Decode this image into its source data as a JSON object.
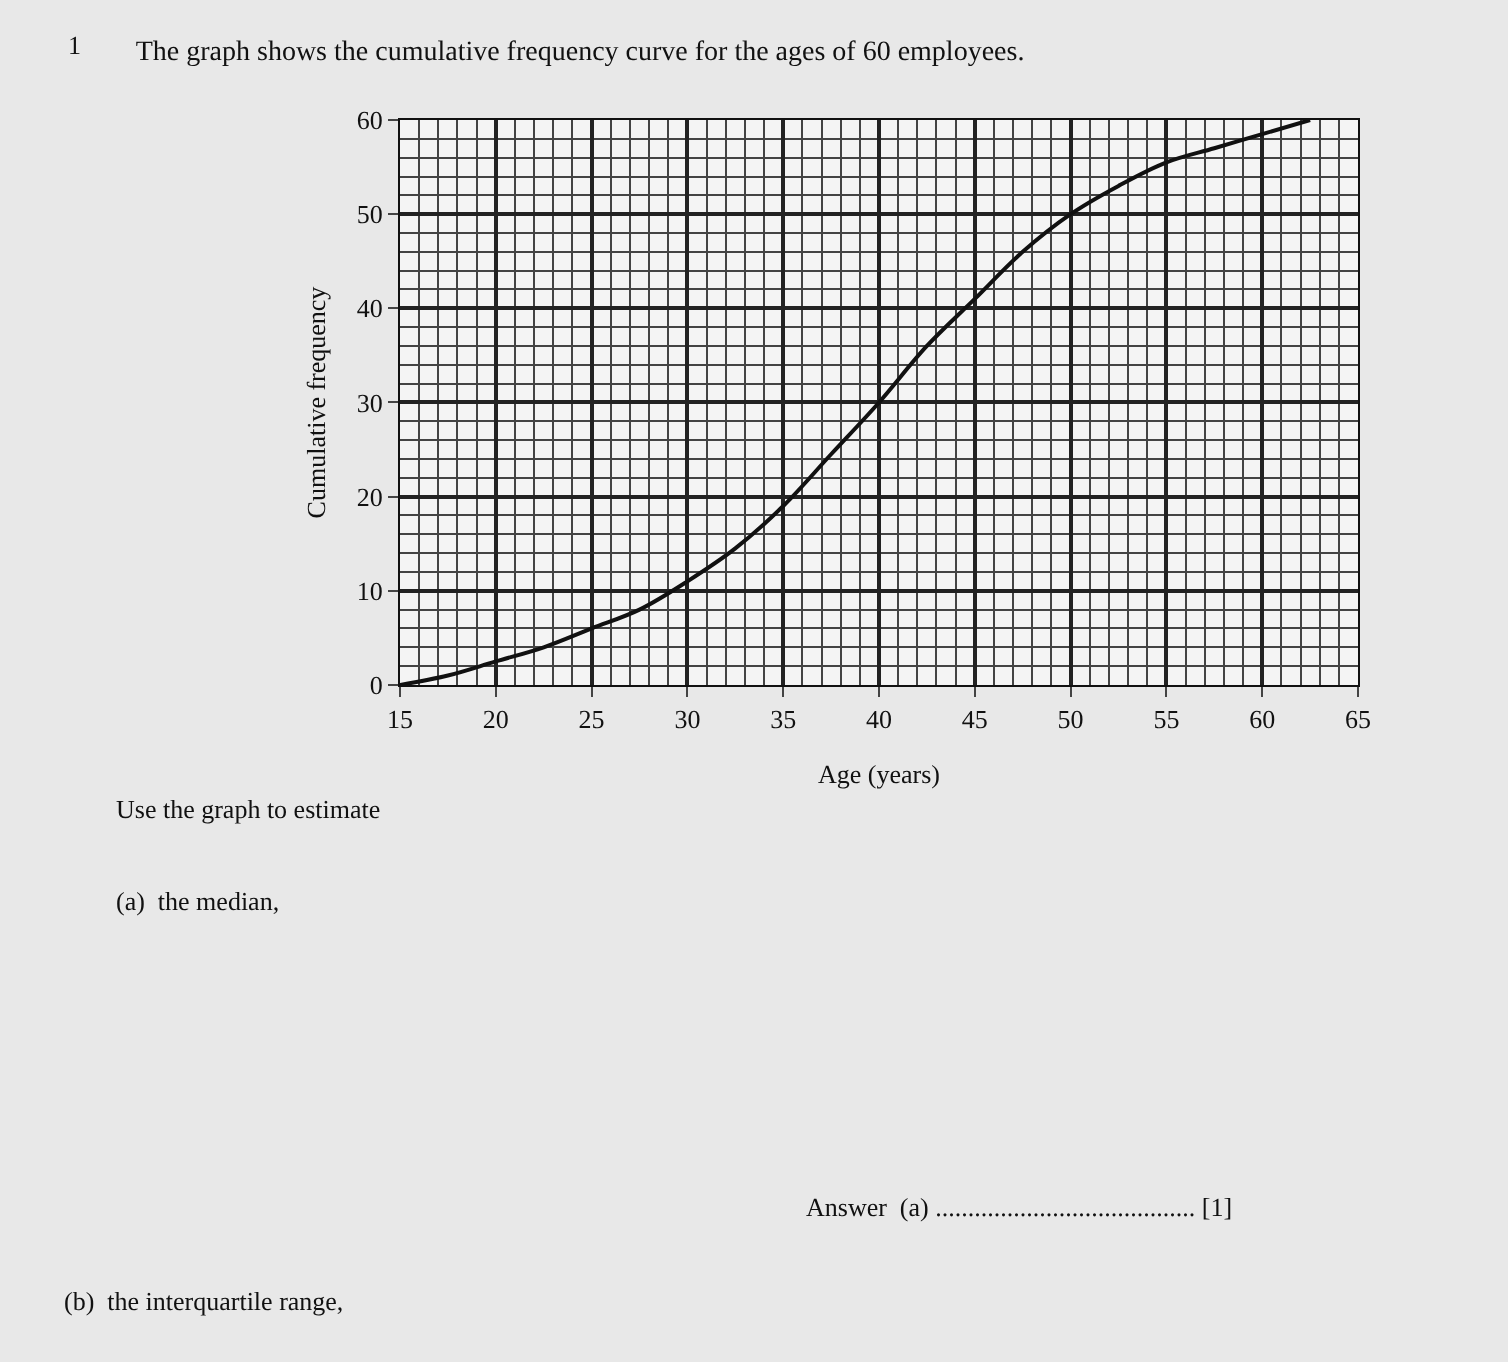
{
  "chart_data": {
    "type": "line",
    "title": "The graph shows the cumulative frequency curve for the ages of 60 employees.",
    "xlabel": "Age (years)",
    "ylabel": "Cumulative frequency",
    "x": [
      15,
      17.5,
      20,
      22.5,
      25,
      27.5,
      30,
      32.5,
      35,
      37.5,
      40,
      42.5,
      45,
      47.5,
      50,
      52.5,
      55,
      57.5,
      60,
      62.5
    ],
    "series": [
      {
        "color": "#111111",
        "values": [
          0,
          1,
          2.5,
          4,
          6,
          8,
          11,
          14.5,
          19,
          24.5,
          30,
          36,
          41,
          46,
          50,
          53,
          55.5,
          57,
          58.5,
          60
        ]
      }
    ],
    "xlim": [
      15,
      65
    ],
    "xticks": [
      15,
      20,
      25,
      30,
      35,
      40,
      45,
      50,
      55,
      60,
      65
    ],
    "ylim": [
      0,
      60
    ],
    "yticks": [
      0,
      10,
      20,
      30,
      40,
      50,
      60
    ],
    "grid": true,
    "marker": "none",
    "line_style": "solid",
    "annotations": [
      "1",
      "Use the graph to estimate",
      "(a)  the median,",
      "Answer  (a) ........................................ [1]",
      "(b)  the interquartile range,"
    ]
  }
}
